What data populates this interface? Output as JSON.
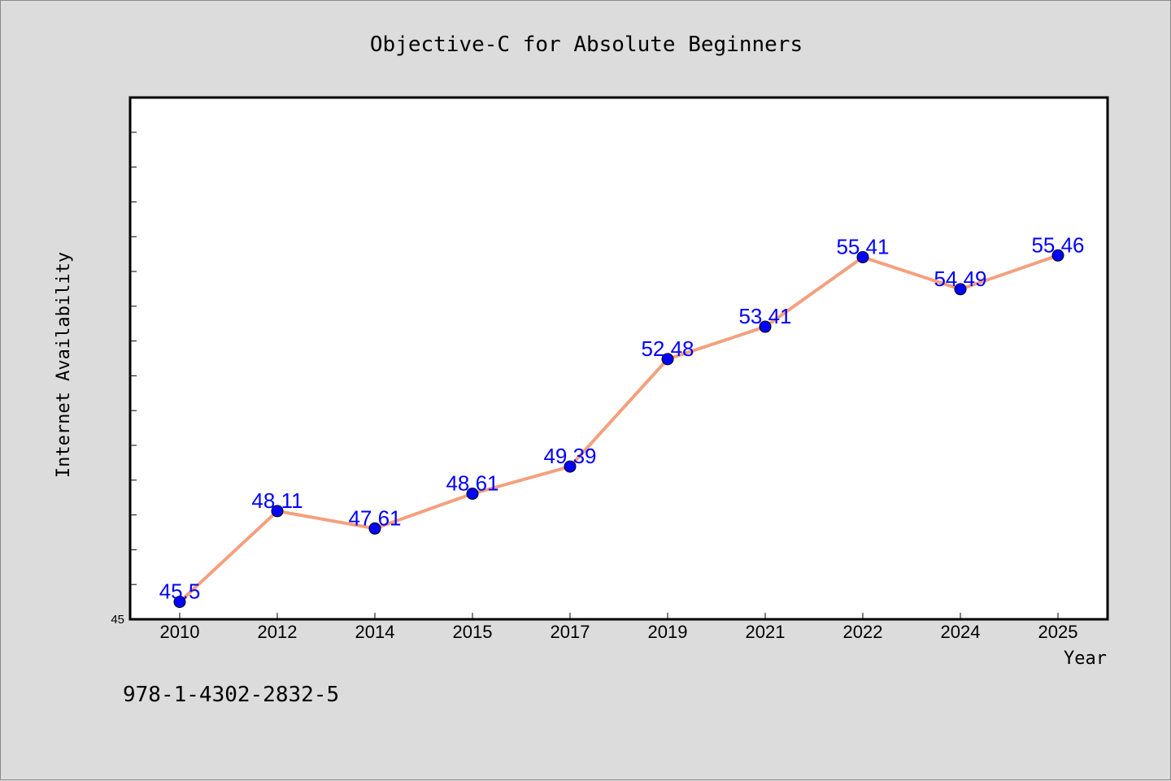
{
  "footer_text": "978-1-4302-2832-5",
  "chart_data": {
    "type": "line",
    "title": "Objective-C for Absolute Beginners",
    "xlabel": "Year",
    "ylabel": "Internet Availability",
    "categories": [
      "2010",
      "2012",
      "2014",
      "2015",
      "2017",
      "2019",
      "2021",
      "2022",
      "2024",
      "2025"
    ],
    "series": [
      {
        "values": [
          45.5,
          48.11,
          47.61,
          48.61,
          49.39,
          52.48,
          53.41,
          55.41,
          54.49,
          55.46
        ],
        "labels": [
          "45.5",
          "48.11",
          "47.61",
          "48.61",
          "49.39",
          "52.48",
          "53.41",
          "55.41",
          "54.49",
          "55.46"
        ]
      }
    ],
    "ylim": [
      45,
      60
    ],
    "y_tick_labels": [
      "45"
    ],
    "grid": false,
    "colors": {
      "line": "#f4a07e",
      "marker": "#0000ff",
      "data_label": "#0000ff",
      "plot_background": "#ffffff",
      "page_background": "#dcdcdc"
    }
  }
}
